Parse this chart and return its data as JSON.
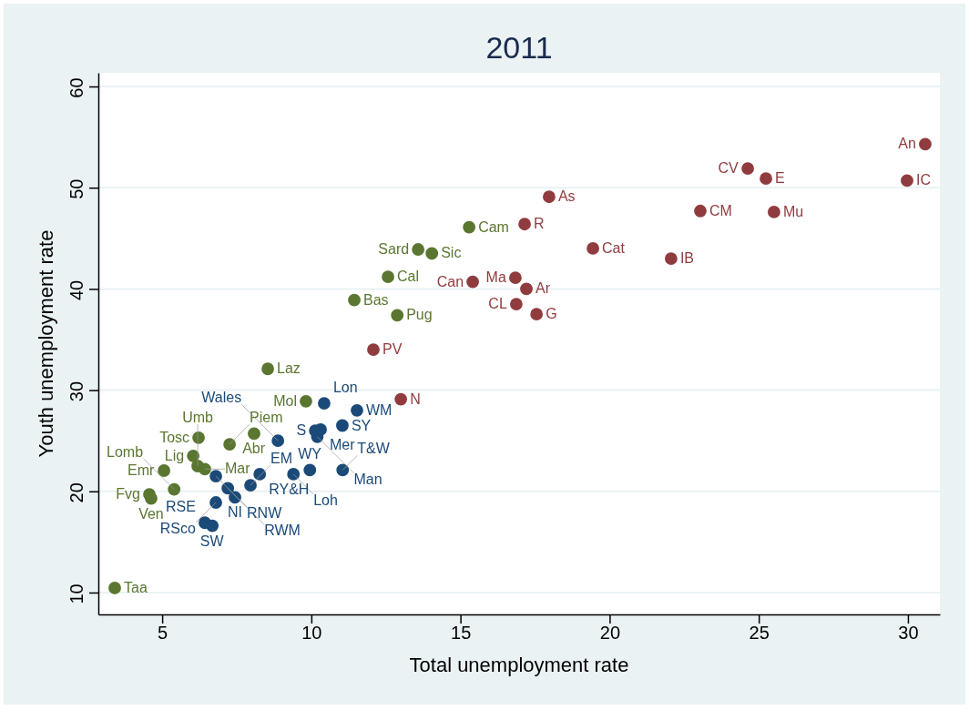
{
  "chart_data": {
    "type": "scatter",
    "title": "2011",
    "xlabel": "Total unemployment rate",
    "ylabel": "Youth unemployment rate",
    "xlim": [
      2.86,
      31.07
    ],
    "ylim": [
      7.84,
      61.35
    ],
    "xticks": [
      5,
      10,
      15,
      20,
      25,
      30
    ],
    "yticks": [
      10,
      20,
      30,
      40,
      50,
      60
    ],
    "grid": "y",
    "marker": "circle",
    "series": [
      {
        "color": "#5a7630",
        "x": [
          3.41,
          4.57,
          4.63,
          5.06,
          5.4,
          6.22,
          6.04,
          6.19,
          6.43,
          7.26,
          8.08,
          9.82,
          8.54,
          11.44,
          12.88,
          12.57,
          13.58,
          14.04,
          15.29
        ],
        "values": [
          10.45,
          19.7,
          19.3,
          22.05,
          20.2,
          25.3,
          23.5,
          22.5,
          22.2,
          24.65,
          25.7,
          28.9,
          32.1,
          38.9,
          37.4,
          41.2,
          43.9,
          43.5,
          46.1
        ]
      },
      {
        "color": "#903c3f",
        "x": [
          12.08,
          13.0,
          15.41,
          16.84,
          17.21,
          16.87,
          17.55,
          17.15,
          17.97,
          19.44,
          22.06,
          23.04,
          25.51,
          24.63,
          25.24,
          29.97,
          30.58
        ],
        "values": [
          34.0,
          29.1,
          40.7,
          41.1,
          40.0,
          38.5,
          37.5,
          46.4,
          49.1,
          44.0,
          43.0,
          47.7,
          47.6,
          51.9,
          50.9,
          50.7,
          54.3
        ]
      },
      {
        "color": "#1b4a78",
        "x": [
          10.43,
          11.53,
          11.04,
          10.13,
          10.31,
          10.2,
          8.88,
          6.8,
          7.2,
          7.44,
          6.8,
          6.43,
          6.68,
          8.27,
          7.96,
          9.4,
          9.95,
          11.05
        ],
        "values": [
          28.7,
          28.0,
          26.5,
          26.0,
          26.1,
          25.4,
          25.0,
          21.5,
          20.3,
          19.4,
          18.9,
          16.9,
          16.6,
          21.7,
          20.6,
          21.7,
          22.1,
          22.1
        ]
      }
    ],
    "annotations": [
      {
        "text": "Taa",
        "x": 3.41,
        "y": 10.45
      },
      {
        "text": "Fvg",
        "x": 4.57,
        "y": 19.7
      },
      {
        "text": "Ven",
        "x": 4.63,
        "y": 19.3
      },
      {
        "text": "Emr",
        "x": 5.06,
        "y": 22.05
      },
      {
        "text": "Lomb",
        "x": 5.4,
        "y": 20.2
      },
      {
        "text": "Tosc",
        "x": 6.22,
        "y": 25.3
      },
      {
        "text": "Lig",
        "x": 6.04,
        "y": 23.5
      },
      {
        "text": "Umb",
        "x": 6.19,
        "y": 22.5
      },
      {
        "text": "Mar",
        "x": 6.43,
        "y": 22.2
      },
      {
        "text": "Piem",
        "x": 7.26,
        "y": 24.65
      },
      {
        "text": "Abr",
        "x": 8.08,
        "y": 25.7
      },
      {
        "text": "Mol",
        "x": 9.82,
        "y": 28.9
      },
      {
        "text": "Laz",
        "x": 8.54,
        "y": 32.1
      },
      {
        "text": "Bas",
        "x": 11.44,
        "y": 38.9
      },
      {
        "text": "Pug",
        "x": 12.88,
        "y": 37.4
      },
      {
        "text": "Cal",
        "x": 12.57,
        "y": 41.2
      },
      {
        "text": "Sard",
        "x": 13.58,
        "y": 43.9
      },
      {
        "text": "Sic",
        "x": 14.04,
        "y": 43.5
      },
      {
        "text": "Cam",
        "x": 15.29,
        "y": 46.1
      },
      {
        "text": "PV",
        "x": 12.08,
        "y": 34.0
      },
      {
        "text": "N",
        "x": 13.0,
        "y": 29.1
      },
      {
        "text": "Can",
        "x": 15.41,
        "y": 40.7
      },
      {
        "text": "Ma",
        "x": 16.84,
        "y": 41.1
      },
      {
        "text": "Ar",
        "x": 17.21,
        "y": 40.0
      },
      {
        "text": "CL",
        "x": 16.87,
        "y": 38.5
      },
      {
        "text": "G",
        "x": 17.55,
        "y": 37.5
      },
      {
        "text": "R",
        "x": 17.15,
        "y": 46.4
      },
      {
        "text": "As",
        "x": 17.97,
        "y": 49.1
      },
      {
        "text": "Cat",
        "x": 19.44,
        "y": 44.0
      },
      {
        "text": "IB",
        "x": 22.06,
        "y": 43.0
      },
      {
        "text": "CM",
        "x": 23.04,
        "y": 47.7
      },
      {
        "text": "Mu",
        "x": 25.51,
        "y": 47.6
      },
      {
        "text": "CV",
        "x": 24.63,
        "y": 51.9
      },
      {
        "text": "E",
        "x": 25.24,
        "y": 50.9
      },
      {
        "text": "IC",
        "x": 29.97,
        "y": 50.7
      },
      {
        "text": "An",
        "x": 30.58,
        "y": 54.3
      },
      {
        "text": "Lon",
        "x": 10.43,
        "y": 28.7
      },
      {
        "text": "WM",
        "x": 11.53,
        "y": 28.0
      },
      {
        "text": "SY",
        "x": 11.04,
        "y": 26.5
      },
      {
        "text": "S",
        "x": 10.13,
        "y": 26.0
      },
      {
        "text": "Mer",
        "x": 10.31,
        "y": 26.1
      },
      {
        "text": "Man",
        "x": 10.2,
        "y": 25.4
      },
      {
        "text": "Wales",
        "x": 8.88,
        "y": 25.0
      },
      {
        "text": "RNW",
        "x": 6.8,
        "y": 21.5
      },
      {
        "text": "RWM",
        "x": 7.2,
        "y": 20.3
      },
      {
        "text": "NI",
        "x": 7.44,
        "y": 19.4
      },
      {
        "text": "RSco",
        "x": 6.8,
        "y": 18.9
      },
      {
        "text": "RSE",
        "x": 6.43,
        "y": 16.9
      },
      {
        "text": "SW",
        "x": 6.68,
        "y": 16.6
      },
      {
        "text": "RY&H",
        "x": 8.27,
        "y": 21.7
      },
      {
        "text": "EM",
        "x": 7.96,
        "y": 20.6
      },
      {
        "text": "Loh",
        "x": 9.4,
        "y": 21.7
      },
      {
        "text": "WY",
        "x": 9.95,
        "y": 22.1
      },
      {
        "text": "T&W",
        "x": 11.05,
        "y": 22.1
      }
    ]
  }
}
